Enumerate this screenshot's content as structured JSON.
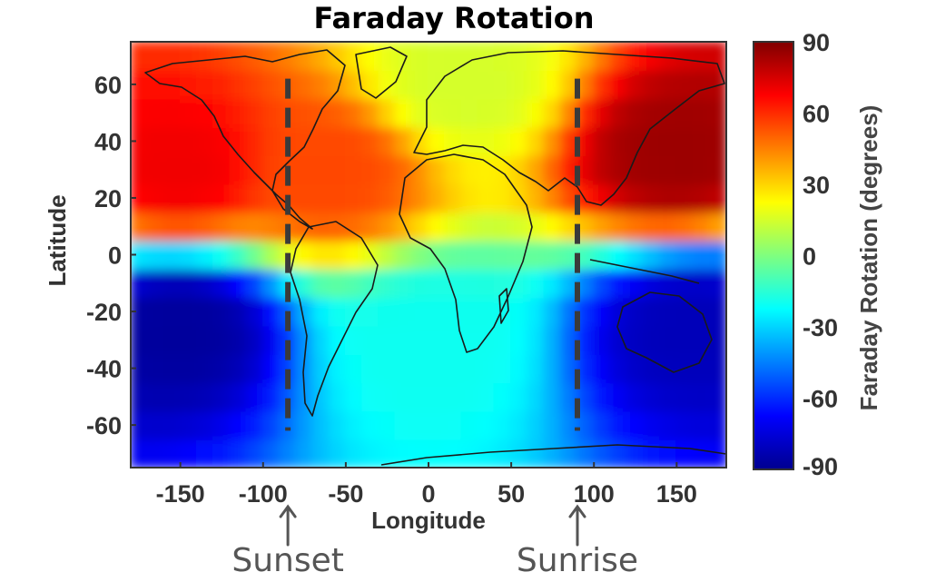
{
  "chart_data": {
    "type": "heatmap",
    "title": "Faraday Rotation",
    "xlabel": "Longitude",
    "ylabel": "Latitude",
    "xlim": [
      -180,
      180
    ],
    "ylim": [
      -75,
      75
    ],
    "x_ticks": [
      -150,
      -100,
      -50,
      0,
      50,
      100,
      150
    ],
    "y_ticks": [
      60,
      40,
      20,
      0,
      -20,
      -40,
      -60
    ],
    "colorbar": {
      "label": "Faraday Rotation (degrees)",
      "range": [
        -90,
        90
      ],
      "ticks": [
        90,
        60,
        30,
        0,
        -30,
        -60,
        -90
      ],
      "colormap": "jet"
    },
    "field_description_values": [
      {
        "lon": -150,
        "lat": 30,
        "value": 70
      },
      {
        "lon": 150,
        "lat": 35,
        "value": 85
      },
      {
        "lon": -60,
        "lat": 30,
        "value": 55
      },
      {
        "lon": 20,
        "lat": 60,
        "value": 15
      },
      {
        "lon": 0,
        "lat": -30,
        "value": -20
      },
      {
        "lon": -150,
        "lat": -25,
        "value": -85
      },
      {
        "lon": 160,
        "lat": -25,
        "value": -80
      }
    ],
    "vertical_markers": [
      {
        "lon": -85,
        "lat_range": [
          -62,
          62
        ],
        "label": "Sunset"
      },
      {
        "lon": 90,
        "lat_range": [
          -62,
          62
        ],
        "label": "Sunrise"
      }
    ]
  }
}
